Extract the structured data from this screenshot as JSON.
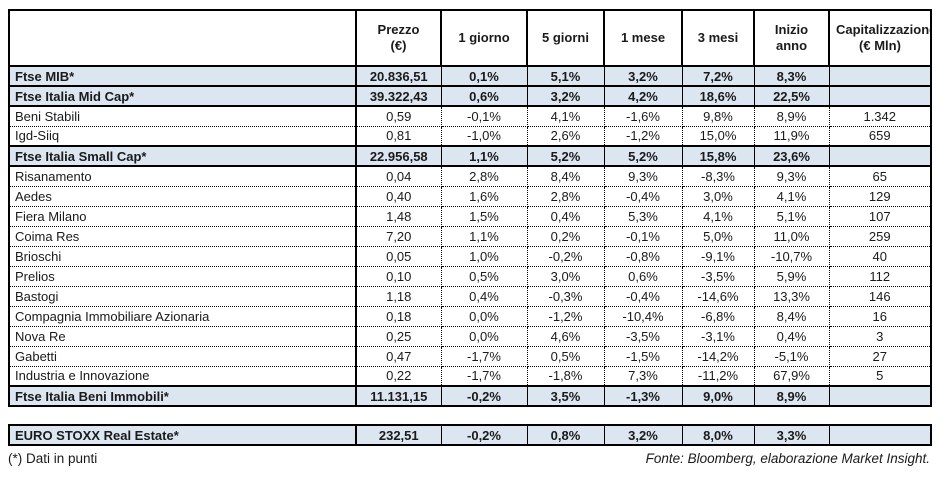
{
  "colors": {
    "index_row_bg": "#dce6f1",
    "border": "#000000",
    "text": "#1a1a1a"
  },
  "table": {
    "columns": [
      {
        "label": ""
      },
      {
        "label": "Prezzo\n(€)"
      },
      {
        "label": "1 giorno"
      },
      {
        "label": "5 giorni"
      },
      {
        "label": "1 mese"
      },
      {
        "label": "3 mesi"
      },
      {
        "label": "Inizio anno"
      },
      {
        "label": "Capitalizzazione\n(€ Mln)"
      }
    ],
    "rows": [
      {
        "name": "Ftse MIB*",
        "style": "index",
        "cells": [
          "20.836,51",
          "0,1%",
          "5,1%",
          "3,2%",
          "7,2%",
          "8,3%",
          ""
        ]
      },
      {
        "name": "Ftse Italia Mid Cap*",
        "style": "index",
        "cells": [
          "39.322,43",
          "0,6%",
          "3,2%",
          "4,2%",
          "18,6%",
          "22,5%",
          ""
        ]
      },
      {
        "name": "Beni Stabili",
        "style": "stock",
        "cells": [
          "0,59",
          "-0,1%",
          "4,1%",
          "-1,6%",
          "9,8%",
          "8,9%",
          "1.342"
        ]
      },
      {
        "name": "Igd-Siiq",
        "style": "stock",
        "cells": [
          "0,81",
          "-1,0%",
          "2,6%",
          "-1,2%",
          "15,0%",
          "11,9%",
          "659"
        ]
      },
      {
        "name": "Ftse Italia Small Cap*",
        "style": "index",
        "cells": [
          "22.956,58",
          "1,1%",
          "5,2%",
          "5,2%",
          "15,8%",
          "23,6%",
          ""
        ]
      },
      {
        "name": "Risanamento",
        "style": "stock",
        "cells": [
          "0,04",
          "2,8%",
          "8,4%",
          "9,3%",
          "-8,3%",
          "9,3%",
          "65"
        ]
      },
      {
        "name": "Aedes",
        "style": "stock",
        "cells": [
          "0,40",
          "1,6%",
          "2,8%",
          "-0,4%",
          "3,0%",
          "4,1%",
          "129"
        ]
      },
      {
        "name": "Fiera Milano",
        "style": "stock",
        "cells": [
          "1,48",
          "1,5%",
          "0,4%",
          "5,3%",
          "4,1%",
          "5,1%",
          "107"
        ]
      },
      {
        "name": "Coima Res",
        "style": "stock",
        "cells": [
          "7,20",
          "1,1%",
          "0,2%",
          "-0,1%",
          "5,0%",
          "11,0%",
          "259"
        ]
      },
      {
        "name": "Brioschi",
        "style": "stock",
        "cells": [
          "0,05",
          "1,0%",
          "-0,2%",
          "-0,8%",
          "-9,1%",
          "-10,7%",
          "40"
        ]
      },
      {
        "name": "Prelios",
        "style": "stock",
        "cells": [
          "0,10",
          "0,5%",
          "3,0%",
          "0,6%",
          "-3,5%",
          "5,9%",
          "112"
        ]
      },
      {
        "name": "Bastogi",
        "style": "stock",
        "cells": [
          "1,18",
          "0,4%",
          "-0,3%",
          "-0,4%",
          "-14,6%",
          "13,3%",
          "146"
        ]
      },
      {
        "name": "Compagnia Immobiliare Azionaria",
        "style": "stock",
        "cells": [
          "0,18",
          "0,0%",
          "-1,2%",
          "-10,4%",
          "-6,8%",
          "8,4%",
          "16"
        ]
      },
      {
        "name": "Nova Re",
        "style": "stock",
        "cells": [
          "0,25",
          "0,0%",
          "4,6%",
          "-3,5%",
          "-3,1%",
          "0,4%",
          "3"
        ]
      },
      {
        "name": "Gabetti",
        "style": "stock",
        "cells": [
          "0,47",
          "-1,7%",
          "0,5%",
          "-1,5%",
          "-14,2%",
          "-5,1%",
          "27"
        ]
      },
      {
        "name": "Industria e Innovazione",
        "style": "stock",
        "cells": [
          "0,22",
          "-1,7%",
          "-1,8%",
          "7,3%",
          "-11,2%",
          "67,9%",
          "5"
        ]
      },
      {
        "name": "Ftse Italia Beni Immobili*",
        "style": "index",
        "cells": [
          "11.131,15",
          "-0,2%",
          "3,5%",
          "-1,3%",
          "9,0%",
          "8,9%",
          ""
        ]
      }
    ]
  },
  "euro_stoxx": {
    "name": "EURO STOXX Real Estate*",
    "style": "index",
    "cells": [
      "232,51",
      "-0,2%",
      "0,8%",
      "3,2%",
      "8,0%",
      "3,3%",
      ""
    ]
  },
  "footer": {
    "left": "(*) Dati in punti",
    "right": "Fonte: Bloomberg, elaborazione Market Insight."
  }
}
